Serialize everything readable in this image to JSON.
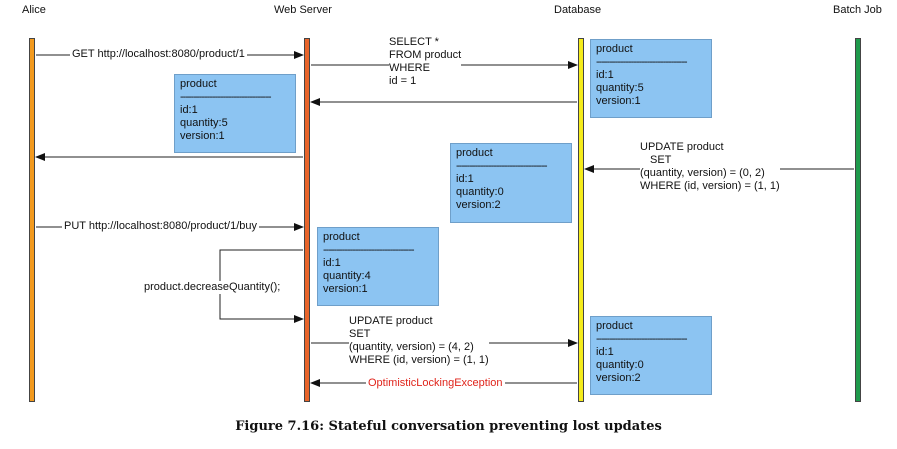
{
  "actors": {
    "alice": "Alice",
    "web_server": "Web Server",
    "database": "Database",
    "batch_job": "Batch Job"
  },
  "colors": {
    "alice_lifeline": "#f39a1e",
    "web_server_lifeline": "#e8642a",
    "database_lifeline": "#f5ec1a",
    "batch_job_lifeline": "#1f9a4c",
    "note_fill": "#8cc4f2",
    "exception_text": "#e0241b"
  },
  "messages": {
    "get_request": "GET http://localhost:8080/product/1",
    "select_line1": "SELECT *",
    "select_line2": "FROM product",
    "select_line3": "WHERE",
    "select_line4": "id = 1",
    "batch_update_line1": "UPDATE product",
    "batch_update_line2": "SET",
    "batch_update_line3": "(quantity, version) = (0, 2)",
    "batch_update_line4": "WHERE (id, version) = (1, 1)",
    "put_request": "PUT http://localhost:8080/product/1/buy",
    "decrease_quantity": "product.decreaseQuantity();",
    "server_update_line1": "UPDATE product",
    "server_update_line2": "SET",
    "server_update_line3": "(quantity, version) = (4, 2)",
    "server_update_line4": "WHERE (id, version) = (1, 1)",
    "exception": "OptimisticLockingException"
  },
  "notes": {
    "db_initial": {
      "title": "product",
      "divider": "----------------------------------",
      "id": "id:1",
      "quantity": "quantity:5",
      "version": "version:1"
    },
    "server_loaded": {
      "title": "product",
      "divider": "----------------------------------",
      "id": "id:1",
      "quantity": "quantity:5",
      "version": "version:1"
    },
    "db_after_batch": {
      "title": "product",
      "divider": "----------------------------------",
      "id": "id:1",
      "quantity": "quantity:0",
      "version": "version:2"
    },
    "server_modified": {
      "title": "product",
      "divider": "----------------------------------",
      "id": "id:1",
      "quantity": "quantity:4",
      "version": "version:1"
    },
    "db_final": {
      "title": "product",
      "divider": "----------------------------------",
      "id": "id:1",
      "quantity": "quantity:0",
      "version": "version:2"
    }
  },
  "caption": "Figure 7.16: Stateful conversation preventing lost updates"
}
